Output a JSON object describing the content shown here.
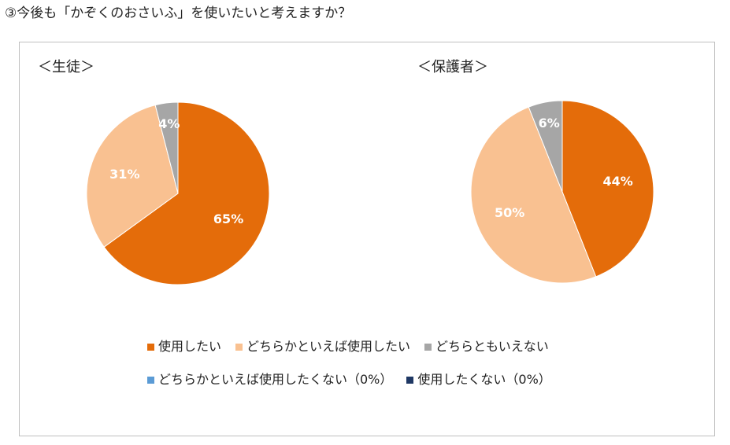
{
  "question": "③今後も「かぞくのおさいふ」を使いたいと考えますか？",
  "colors": {
    "use": "#E46C0A",
    "rather_use": "#F9C191",
    "neither": "#A6A6A6",
    "rather_not": "#5B9BD5",
    "not_use": "#1F3864"
  },
  "legend": [
    {
      "label": "使用したい",
      "color": "#E46C0A"
    },
    {
      "label": "どちらかといえば使用したい",
      "color": "#F9C191"
    },
    {
      "label": "どちらともいえない",
      "color": "#A6A6A6"
    },
    {
      "label": "どちらかといえば使用したくない（0%）",
      "color": "#5B9BD5"
    },
    {
      "label": "使用したくない（0%）",
      "color": "#1F3864"
    }
  ],
  "chart_data": [
    {
      "type": "pie",
      "title": "＜生徒＞",
      "slices": [
        {
          "label": "使用したい",
          "value": 65,
          "display": "65%",
          "color": "#E46C0A"
        },
        {
          "label": "どちらかといえば使用したい",
          "value": 31,
          "display": "31%",
          "color": "#F9C191"
        },
        {
          "label": "どちらともいえない",
          "value": 4,
          "display": "4%",
          "color": "#A6A6A6"
        }
      ]
    },
    {
      "type": "pie",
      "title": "＜保護者＞",
      "slices": [
        {
          "label": "使用したい",
          "value": 44,
          "display": "44%",
          "color": "#E46C0A"
        },
        {
          "label": "どちらかといえば使用したい",
          "value": 50,
          "display": "50%",
          "color": "#F9C191"
        },
        {
          "label": "どちらともいえない",
          "value": 6,
          "display": "6%",
          "color": "#A6A6A6"
        }
      ]
    }
  ]
}
